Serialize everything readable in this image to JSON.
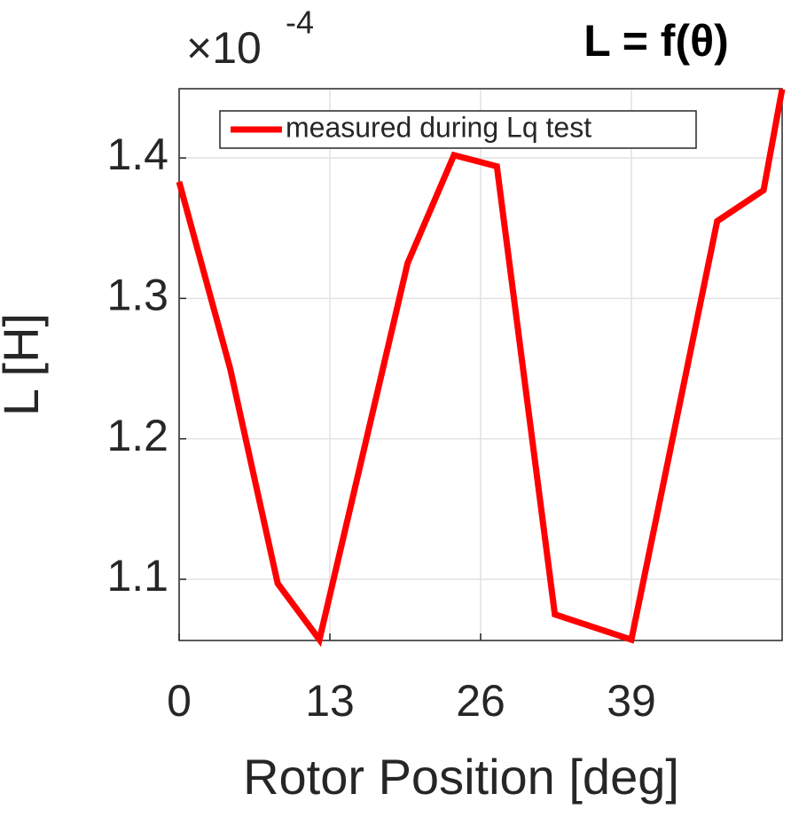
{
  "chart_data": {
    "type": "line",
    "title": "L = f(θ)",
    "x_label": "Rotor Position [deg]",
    "y_label": "L [H]",
    "y_multiplier": {
      "base": "×10",
      "exponent": "-4"
    },
    "x": [
      0,
      4.4,
      8.5,
      12.1,
      19.7,
      23.7,
      27.4,
      32.4,
      39,
      46.4,
      50.4,
      52
    ],
    "series": [
      {
        "name": "measured during Lq test",
        "color": "#ff0000",
        "values": [
          1.383,
          1.25,
          1.097,
          1.057,
          1.325,
          1.402,
          1.394,
          1.075,
          1.057,
          1.355,
          1.377,
          1.449
        ]
      }
    ],
    "xlim": [
      0,
      52
    ],
    "xticks": [
      0,
      13,
      26,
      39
    ],
    "ylim": [
      1.0564,
      1.4493
    ],
    "yticks": [
      1.1,
      1.2,
      1.3,
      1.4
    ],
    "grid": true,
    "legend": "upper left"
  }
}
